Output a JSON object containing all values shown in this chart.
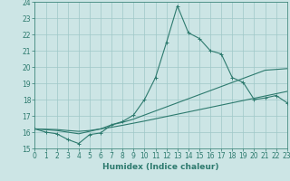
{
  "xlabel": "Humidex (Indice chaleur)",
  "x_values": [
    0,
    1,
    2,
    3,
    4,
    5,
    6,
    7,
    8,
    9,
    10,
    11,
    12,
    13,
    14,
    15,
    16,
    17,
    18,
    19,
    20,
    21,
    22,
    23
  ],
  "line1_y": [
    16.2,
    16.0,
    15.9,
    15.55,
    15.3,
    15.85,
    15.95,
    16.45,
    16.65,
    17.05,
    18.0,
    19.35,
    21.5,
    23.75,
    22.1,
    21.75,
    21.0,
    20.8,
    19.35,
    19.05,
    18.0,
    18.1,
    18.25,
    17.8
  ],
  "line2_x": [
    0,
    1,
    2,
    3,
    4,
    5,
    6,
    7,
    8,
    9,
    10,
    11,
    12,
    13,
    14,
    15,
    16,
    17,
    18,
    19,
    20,
    21,
    22,
    23
  ],
  "line2_y": [
    16.2,
    16.15,
    16.1,
    16.0,
    15.9,
    16.05,
    16.2,
    16.45,
    16.6,
    16.8,
    17.05,
    17.3,
    17.55,
    17.8,
    18.05,
    18.3,
    18.55,
    18.8,
    19.05,
    19.3,
    19.55,
    19.8,
    19.85,
    19.9
  ],
  "line3_x": [
    0,
    1,
    2,
    3,
    4,
    5,
    6,
    7,
    8,
    9,
    10,
    11,
    12,
    13,
    14,
    15,
    16,
    17,
    18,
    19,
    20,
    21,
    22,
    23
  ],
  "line3_y": [
    16.2,
    16.18,
    16.16,
    16.1,
    16.05,
    16.1,
    16.2,
    16.3,
    16.42,
    16.55,
    16.68,
    16.82,
    16.96,
    17.1,
    17.24,
    17.38,
    17.52,
    17.66,
    17.8,
    17.94,
    18.08,
    18.22,
    18.36,
    18.5
  ],
  "bg_color": "#cce5e5",
  "line_color": "#2d7a6e",
  "grid_color": "#9fc8c8",
  "ylim": [
    15,
    24
  ],
  "xlim": [
    0,
    23
  ],
  "yticks": [
    15,
    16,
    17,
    18,
    19,
    20,
    21,
    22,
    23,
    24
  ],
  "xticks": [
    0,
    1,
    2,
    3,
    4,
    5,
    6,
    7,
    8,
    9,
    10,
    11,
    12,
    13,
    14,
    15,
    16,
    17,
    18,
    19,
    20,
    21,
    22,
    23
  ],
  "tick_fontsize": 5.5,
  "xlabel_fontsize": 6.5
}
